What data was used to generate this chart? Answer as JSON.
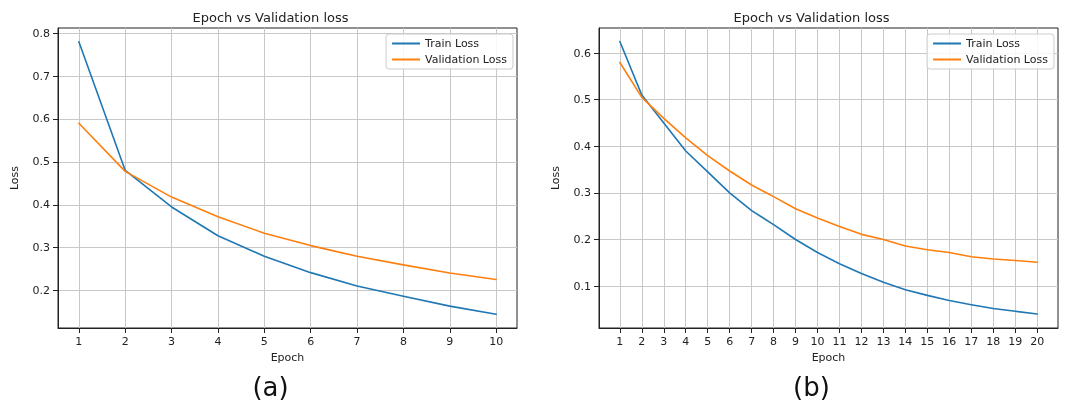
{
  "chart_data": [
    {
      "type": "line",
      "title": "Epoch vs Validation loss",
      "xlabel": "Epoch",
      "ylabel": "Loss",
      "annotations": [
        "(a)"
      ],
      "x": [
        1,
        2,
        3,
        4,
        5,
        6,
        7,
        8,
        9,
        10
      ],
      "series": [
        {
          "name": "Train Loss",
          "color": "#1f77b4",
          "values": [
            0.78,
            0.48,
            0.395,
            0.328,
            0.28,
            0.242,
            0.211,
            0.187,
            0.164,
            0.145
          ]
        },
        {
          "name": "Validation Loss",
          "color": "#ff7f0e",
          "values": [
            0.59,
            0.478,
            0.418,
            0.372,
            0.334,
            0.305,
            0.28,
            0.26,
            0.241,
            0.226
          ]
        }
      ],
      "xlim": [
        0.55,
        10.45
      ],
      "xticks": [
        1,
        2,
        3,
        4,
        5,
        6,
        7,
        8,
        9,
        10
      ],
      "ylim": [
        0.113,
        0.812
      ],
      "yticks": [
        0.2,
        0.3,
        0.4,
        0.5,
        0.6,
        0.7,
        0.8
      ],
      "grid": true,
      "legend": "top right",
      "marker": "none",
      "line_style": "solid"
    },
    {
      "type": "line",
      "title": "Epoch vs Validation loss",
      "xlabel": "Epoch",
      "ylabel": "Loss",
      "annotations": [
        "(b)"
      ],
      "x": [
        1,
        2,
        3,
        4,
        5,
        6,
        7,
        8,
        9,
        10,
        11,
        12,
        13,
        14,
        15,
        16,
        17,
        18,
        19,
        20
      ],
      "series": [
        {
          "name": "Train Loss",
          "color": "#1f77b4",
          "values": [
            0.625,
            0.51,
            0.45,
            0.39,
            0.345,
            0.3,
            0.262,
            0.232,
            0.2,
            0.172,
            0.148,
            0.127,
            0.108,
            0.092,
            0.08,
            0.069,
            0.06,
            0.052,
            0.046,
            0.04
          ]
        },
        {
          "name": "Validation Loss",
          "color": "#ff7f0e",
          "values": [
            0.58,
            0.505,
            0.46,
            0.418,
            0.38,
            0.347,
            0.317,
            0.292,
            0.266,
            0.246,
            0.228,
            0.211,
            0.2,
            0.186,
            0.178,
            0.172,
            0.163,
            0.158,
            0.155,
            0.151
          ]
        }
      ],
      "xlim": [
        0.05,
        20.95
      ],
      "xticks": [
        1,
        2,
        3,
        4,
        5,
        6,
        7,
        8,
        9,
        10,
        11,
        12,
        13,
        14,
        15,
        16,
        17,
        18,
        19,
        20
      ],
      "ylim": [
        0.01,
        0.654
      ],
      "yticks": [
        0.1,
        0.2,
        0.3,
        0.4,
        0.5,
        0.6
      ],
      "grid": true,
      "legend": "top right",
      "marker": "none",
      "line_style": "solid"
    }
  ]
}
